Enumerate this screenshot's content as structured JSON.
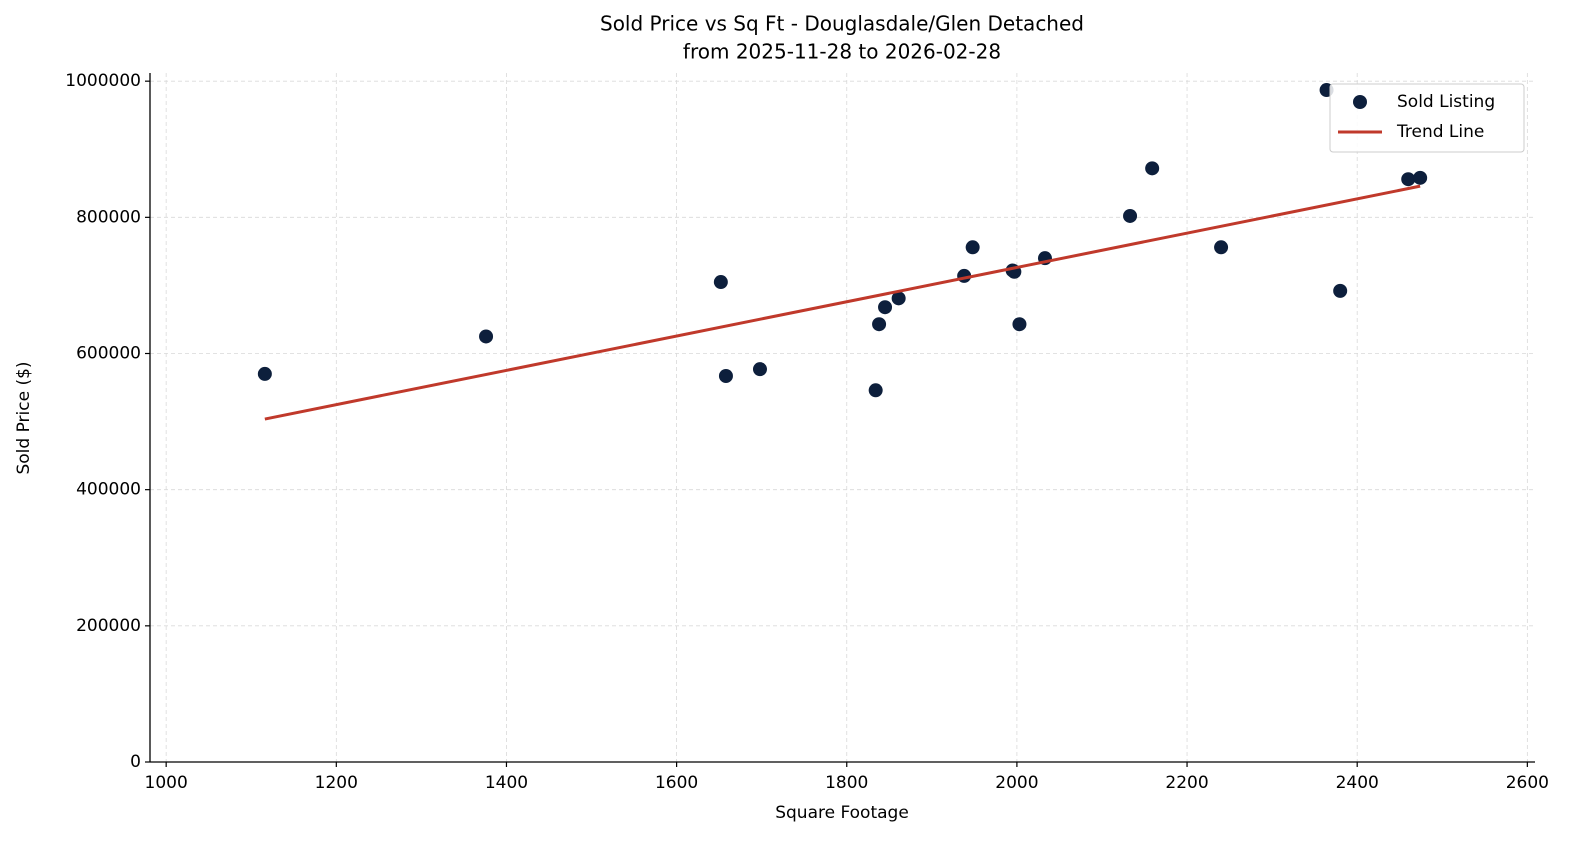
{
  "chart_data": {
    "type": "scatter",
    "title": "Sold Price vs Sq Ft - Douglasdale/Glen Detached",
    "subtitle": "from 2025-11-28 to 2026-02-28",
    "xlabel": "Square Footage",
    "ylabel": "Sold Price ($)",
    "series": [
      {
        "name": "Sold Listing",
        "type": "scatter",
        "color": "#0d1f3c",
        "x": [
          1116,
          1376,
          1652,
          1658,
          1698,
          1834,
          1838,
          1845,
          1861,
          1938,
          1948,
          1995,
          1997,
          2003,
          2033,
          2133,
          2159,
          2240,
          2364,
          2380,
          2460,
          2474
        ],
        "values": [
          570000,
          625000,
          705000,
          567000,
          577000,
          546000,
          643000,
          668000,
          681000,
          714000,
          756000,
          722000,
          720000,
          643000,
          740000,
          802000,
          872000,
          756000,
          987000,
          692000,
          856000,
          858000
        ]
      },
      {
        "name": "Trend Line",
        "type": "line",
        "color": "#c0392b",
        "x": [
          1116,
          2474
        ],
        "values": [
          503700,
          845800
        ]
      }
    ],
    "xlim": [
      981,
      2609
    ],
    "ylim": [
      0,
      1012000
    ],
    "xticks": [
      1000,
      1200,
      1400,
      1600,
      1800,
      2000,
      2200,
      2400,
      2600
    ],
    "yticks": [
      0,
      200000,
      400000,
      600000,
      800000,
      1000000
    ],
    "grid": true,
    "legend": "upper right"
  }
}
